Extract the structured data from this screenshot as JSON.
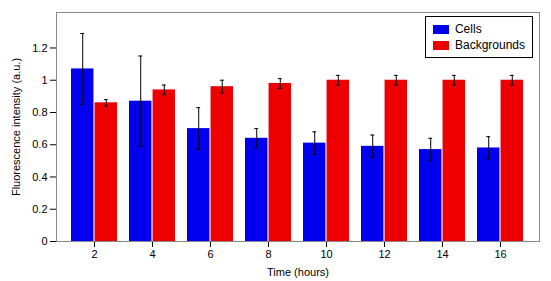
{
  "chart_data": {
    "type": "bar",
    "categories": [
      "2",
      "4",
      "6",
      "8",
      "10",
      "12",
      "14",
      "16"
    ],
    "series": [
      {
        "name": "Cells",
        "color": "#0000EE",
        "values": [
          1.07,
          0.87,
          0.7,
          0.64,
          0.61,
          0.59,
          0.57,
          0.58
        ],
        "errors": [
          0.22,
          0.28,
          0.13,
          0.06,
          0.07,
          0.07,
          0.07,
          0.07
        ]
      },
      {
        "name": "Backgrounds",
        "color": "#EE0000",
        "values": [
          0.86,
          0.94,
          0.96,
          0.98,
          1.0,
          1.0,
          1.0,
          1.0
        ],
        "errors": [
          0.02,
          0.03,
          0.04,
          0.03,
          0.03,
          0.03,
          0.03,
          0.03
        ]
      }
    ],
    "xlabel": "Time (hours)",
    "ylabel": "Fluorescence intensity (a.u.)",
    "ylim": [
      0,
      1.42
    ],
    "yticks": [
      0,
      0.2,
      0.4,
      0.6,
      0.8,
      1,
      1.2
    ],
    "grid": false,
    "legend": "upper right"
  }
}
